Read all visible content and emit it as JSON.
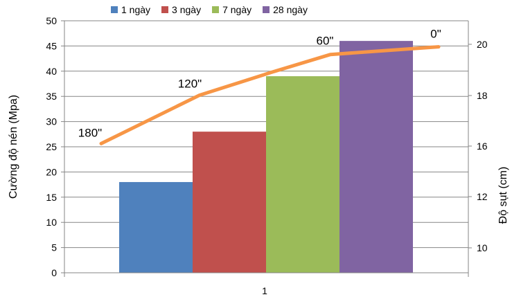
{
  "chart_data": {
    "type": "bar",
    "categories": [
      "1"
    ],
    "series": [
      {
        "name": "1 ngày",
        "values": [
          18
        ],
        "color": "#4f81bd"
      },
      {
        "name": "3 ngày",
        "values": [
          28
        ],
        "color": "#c0504d"
      },
      {
        "name": "7 ngày",
        "values": [
          39
        ],
        "color": "#9bbb59"
      },
      {
        "name": "28 ngày",
        "values": [
          46
        ],
        "color": "#8064a2"
      }
    ],
    "ylabel": "Cường độ nén (Mpa)",
    "ylim": [
      0,
      50
    ],
    "yticks": [
      "0",
      "5",
      "10",
      "15",
      "20",
      "25",
      "30",
      "35",
      "40",
      "45",
      "50"
    ],
    "y2label": "Độ sụt (cm)",
    "y2ticks": [
      "10",
      "12",
      "16",
      "18",
      "20"
    ],
    "grid": true,
    "legend_position": "top",
    "overlay_line": {
      "type": "line",
      "color": "#f79646",
      "points": [
        {
          "label": "180\"",
          "value": 16.1
        },
        {
          "label": "120\"",
          "value": 18.0
        },
        {
          "label": "",
          "value": 18.9
        },
        {
          "label": "60\"",
          "value": 19.6
        },
        {
          "label": "0\"",
          "value": 19.9
        }
      ]
    }
  }
}
